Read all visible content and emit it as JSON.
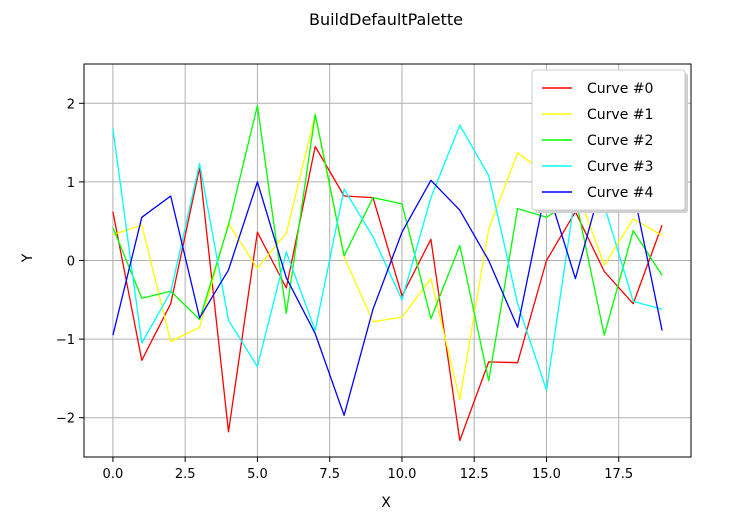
{
  "chart_data": {
    "type": "line",
    "title": "BuildDefaultPalette",
    "xlabel": "X",
    "ylabel": "Y",
    "xlim": [
      -1,
      20
    ],
    "ylim": [
      -2.5,
      2.5
    ],
    "xticks": [
      0.0,
      2.5,
      5.0,
      7.5,
      10.0,
      12.5,
      15.0,
      17.5
    ],
    "xtick_labels": [
      "0.0",
      "2.5",
      "5.0",
      "7.5",
      "10.0",
      "12.5",
      "15.0",
      "17.5"
    ],
    "yticks": [
      -2,
      -1,
      0,
      1,
      2
    ],
    "ytick_labels": [
      "−2",
      "−1",
      "0",
      "1",
      "2"
    ],
    "grid": true,
    "legend_position": "top-right",
    "x": [
      0,
      1,
      2,
      3,
      4,
      5,
      6,
      7,
      8,
      9,
      10,
      11,
      12,
      13,
      14,
      15,
      16,
      17,
      18,
      19
    ],
    "series": [
      {
        "name": "Curve #0",
        "color": "#ff0000",
        "values": [
          0.62,
          -1.27,
          -0.55,
          1.18,
          -2.18,
          0.36,
          -0.35,
          1.45,
          0.82,
          0.8,
          -0.45,
          0.27,
          -2.29,
          -1.29,
          -1.3,
          0.0,
          0.62,
          -0.14,
          -0.55,
          0.45
        ]
      },
      {
        "name": "Curve #1",
        "color": "#ffff00",
        "values": [
          0.33,
          0.45,
          -1.03,
          -0.85,
          0.47,
          -0.1,
          0.35,
          1.85,
          0.05,
          -0.78,
          -0.72,
          -0.23,
          -1.77,
          0.4,
          1.37,
          1.1,
          0.95,
          -0.06,
          0.53,
          0.32
        ]
      },
      {
        "name": "Curve #2",
        "color": "#00ff00",
        "values": [
          0.42,
          -0.48,
          -0.39,
          -0.75,
          0.45,
          1.97,
          -0.67,
          1.86,
          0.06,
          0.8,
          0.72,
          -0.74,
          0.19,
          -1.53,
          0.66,
          0.55,
          0.8,
          -0.95,
          0.38,
          -0.19
        ]
      },
      {
        "name": "Curve #3",
        "color": "#00ffff",
        "values": [
          1.68,
          -1.05,
          -0.4,
          1.23,
          -0.76,
          -1.35,
          0.11,
          -0.89,
          0.91,
          0.3,
          -0.5,
          0.8,
          1.72,
          1.08,
          -0.55,
          -1.65,
          0.85,
          0.7,
          -0.52,
          -0.62
        ]
      },
      {
        "name": "Curve #4",
        "color": "#0000ff",
        "values": [
          -0.95,
          0.55,
          0.82,
          -0.73,
          -0.12,
          1.0,
          -0.22,
          -0.93,
          -1.97,
          -0.62,
          0.36,
          1.02,
          0.64,
          0.0,
          -0.85,
          0.95,
          -0.23,
          1.1,
          0.9,
          -0.89
        ]
      }
    ]
  }
}
